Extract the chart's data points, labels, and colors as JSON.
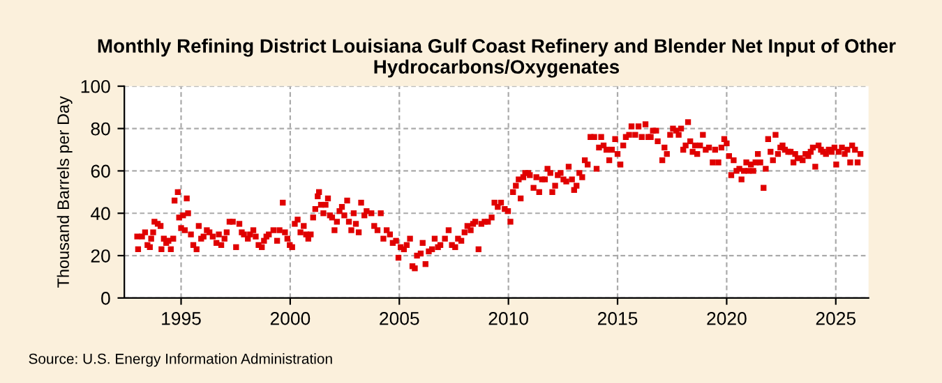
{
  "chart_data": {
    "type": "scatter",
    "title": "Monthly Refining District Louisiana Gulf Coast Refinery and Blender Net Input of Other Hydrocarbons/Oxygenates",
    "ylabel": "Thousand Barrels per Day",
    "annotations": [
      "Source: U.S. Energy Information Administration"
    ],
    "xlim": [
      1992.4,
      2026.5
    ],
    "xticks": [
      1995,
      2000,
      2005,
      2010,
      2015,
      2020,
      2025
    ],
    "ylim": [
      0,
      100
    ],
    "yticks": [
      0,
      20,
      40,
      60,
      80,
      100
    ],
    "grid": true,
    "marker": "square",
    "series": [
      {
        "color": "#e00000",
        "x": [
          1992.99,
          1993.03,
          1993.21,
          1993.35,
          1993.46,
          1993.57,
          1993.63,
          1993.72,
          1993.78,
          1993.93,
          1994.06,
          1994.1,
          1994.21,
          1994.32,
          1994.42,
          1994.53,
          1994.64,
          1994.7,
          1994.85,
          1994.91,
          1995.0,
          1995.09,
          1995.17,
          1995.26,
          1995.32,
          1995.45,
          1995.56,
          1995.71,
          1995.81,
          1995.92,
          1996.03,
          1996.18,
          1996.3,
          1996.45,
          1996.62,
          1996.73,
          1996.84,
          1996.99,
          1997.09,
          1997.22,
          1997.37,
          1997.52,
          1997.67,
          1997.78,
          1997.88,
          1998.06,
          1998.16,
          1998.31,
          1998.42,
          1998.55,
          1998.7,
          1998.8,
          1998.91,
          1999.02,
          1999.23,
          1999.4,
          1999.51,
          1999.66,
          1999.76,
          1999.87,
          1999.98,
          2000.09,
          2000.21,
          2000.34,
          2000.47,
          2000.62,
          2000.73,
          2000.83,
          2000.94,
          2001.05,
          2001.15,
          2001.26,
          2001.32,
          2001.41,
          2001.52,
          2001.62,
          2001.73,
          2001.82,
          2001.92,
          2002.03,
          2002.14,
          2002.26,
          2002.37,
          2002.48,
          2002.61,
          2002.69,
          2002.8,
          2002.91,
          2003.01,
          2003.14,
          2003.25,
          2003.4,
          2003.5,
          2003.72,
          2003.85,
          2004.0,
          2004.15,
          2004.27,
          2004.42,
          2004.57,
          2004.7,
          2004.85,
          2004.96,
          2005.06,
          2005.21,
          2005.34,
          2005.49,
          2005.6,
          2005.71,
          2005.81,
          2005.98,
          2006.07,
          2006.2,
          2006.35,
          2006.5,
          2006.62,
          2006.77,
          2006.88,
          2007.09,
          2007.26,
          2007.41,
          2007.56,
          2007.69,
          2007.84,
          2007.99,
          2008.12,
          2008.27,
          2008.38,
          2008.48,
          2008.63,
          2008.76,
          2008.91,
          2009.06,
          2009.23,
          2009.36,
          2009.51,
          2009.66,
          2009.83,
          2009.98,
          2010.09,
          2010.21,
          2010.34,
          2010.47,
          2010.56,
          2010.68,
          2010.77,
          2010.9,
          2010.98,
          2011.15,
          2011.28,
          2011.41,
          2011.54,
          2011.67,
          2011.79,
          2011.92,
          2012.01,
          2012.14,
          2012.26,
          2012.39,
          2012.52,
          2012.65,
          2012.76,
          2012.91,
          2013.01,
          2013.12,
          2013.25,
          2013.38,
          2013.5,
          2013.63,
          2013.76,
          2013.93,
          2014.04,
          2014.15,
          2014.25,
          2014.36,
          2014.49,
          2014.62,
          2014.74,
          2014.89,
          2015.0,
          2015.13,
          2015.26,
          2015.38,
          2015.53,
          2015.64,
          2015.81,
          2015.96,
          2016.11,
          2016.28,
          2016.41,
          2016.52,
          2016.62,
          2016.77,
          2016.84,
          2017.05,
          2017.15,
          2017.26,
          2017.41,
          2017.54,
          2017.69,
          2017.8,
          2017.91,
          2018.01,
          2018.12,
          2018.23,
          2018.33,
          2018.44,
          2018.55,
          2018.65,
          2018.78,
          2018.91,
          2019.04,
          2019.19,
          2019.36,
          2019.47,
          2019.62,
          2019.76,
          2019.89,
          2020.0,
          2020.11,
          2020.21,
          2020.32,
          2020.45,
          2020.58,
          2020.68,
          2020.79,
          2020.9,
          2021.0,
          2021.11,
          2021.22,
          2021.32,
          2021.43,
          2021.54,
          2021.69,
          2021.79,
          2021.9,
          2022.01,
          2022.12,
          2022.24,
          2022.35,
          2022.46,
          2022.56,
          2022.67,
          2022.82,
          2022.93,
          2023.06,
          2023.14,
          2023.25,
          2023.35,
          2023.48,
          2023.61,
          2023.74,
          2023.85,
          2023.95,
          2024.06,
          2024.21,
          2024.32,
          2024.42,
          2024.55,
          2024.68,
          2024.81,
          2024.94,
          2025.02,
          2025.13,
          2025.28,
          2025.41,
          2025.53,
          2025.66,
          2025.75,
          2025.88,
          2026.0,
          2026.13
        ],
        "values": [
          29,
          23,
          29,
          31,
          25,
          24,
          28,
          31,
          36,
          35,
          34,
          23,
          28,
          26,
          27,
          23,
          28,
          46,
          50,
          38,
          33,
          39,
          32,
          47,
          40,
          30,
          25,
          23,
          34,
          28,
          29,
          32,
          31,
          29,
          26,
          30,
          25,
          28,
          31,
          36,
          36,
          24,
          35,
          31,
          30,
          28,
          30,
          32,
          29,
          25,
          24,
          27,
          29,
          30,
          32,
          27,
          32,
          45,
          31,
          28,
          25,
          24,
          35,
          37,
          31,
          34,
          30,
          28,
          30,
          38,
          42,
          48,
          50,
          44,
          40,
          44,
          47,
          39,
          38,
          32,
          36,
          41,
          43,
          39,
          46,
          36,
          32,
          40,
          35,
          31,
          45,
          39,
          41,
          40,
          34,
          32,
          40,
          28,
          32,
          30,
          26,
          27,
          19,
          24,
          23,
          25,
          28,
          15,
          14,
          20,
          21,
          26,
          16,
          22,
          23,
          28,
          24,
          25,
          28,
          32,
          25,
          24,
          28,
          27,
          31,
          34,
          32,
          35,
          36,
          23,
          35,
          36,
          36,
          38,
          45,
          43,
          45,
          42,
          41,
          36,
          50,
          53,
          56,
          47,
          57,
          59,
          59,
          58,
          52,
          57,
          50,
          56,
          56,
          61,
          59,
          50,
          53,
          58,
          59,
          56,
          55,
          62,
          56,
          51,
          53,
          59,
          57,
          65,
          63,
          76,
          76,
          61,
          71,
          76,
          72,
          70,
          65,
          70,
          75,
          68,
          63,
          72,
          76,
          77,
          81,
          77,
          81,
          76,
          82,
          76,
          76,
          79,
          79,
          74,
          65,
          71,
          68,
          77,
          80,
          79,
          77,
          80,
          70,
          72,
          83,
          74,
          69,
          72,
          68,
          72,
          77,
          70,
          71,
          64,
          70,
          64,
          71,
          75,
          73,
          67,
          58,
          65,
          60,
          61,
          56,
          60,
          64,
          60,
          63,
          60,
          64,
          68,
          64,
          52,
          61,
          75,
          69,
          65,
          77,
          68,
          71,
          72,
          70,
          69,
          69,
          64,
          68,
          66,
          66,
          65,
          68,
          67,
          69,
          71,
          62,
          72,
          70,
          69,
          68,
          70,
          69,
          71,
          63,
          69,
          71,
          68,
          70,
          64,
          72,
          70,
          64,
          68
        ]
      }
    ]
  }
}
